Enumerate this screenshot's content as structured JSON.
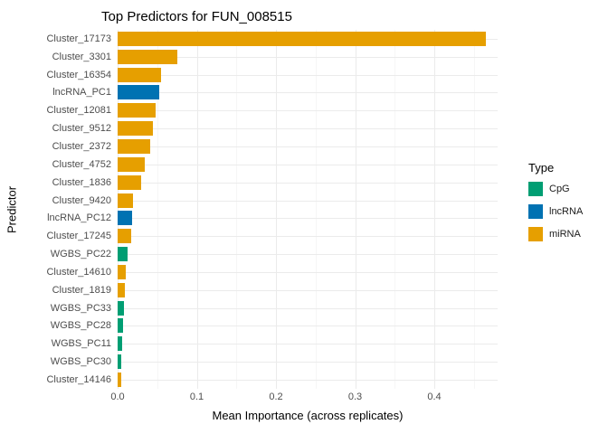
{
  "chart_data": {
    "type": "bar",
    "orientation": "horizontal",
    "title": "Top Predictors for FUN_008515",
    "xlabel": "Mean Importance (across replicates)",
    "ylabel": "Predictor",
    "xlim": [
      0,
      0.48
    ],
    "x_ticks": [
      0.0,
      0.1,
      0.2,
      0.3,
      0.4
    ],
    "x_minor_ticks": [
      0.05,
      0.15,
      0.25,
      0.35,
      0.45
    ],
    "grid": true,
    "background": "#ffffff",
    "legend": {
      "title": "Type",
      "position": "right",
      "entries": [
        {
          "label": "CpG",
          "color": "#009E73"
        },
        {
          "label": "lncRNA",
          "color": "#0072B2"
        },
        {
          "label": "miRNA",
          "color": "#E69F00"
        }
      ]
    },
    "type_colors": {
      "CpG": "#009E73",
      "lncRNA": "#0072B2",
      "miRNA": "#E69F00"
    },
    "bars": [
      {
        "label": "Cluster_17173",
        "type": "miRNA",
        "value": 0.465
      },
      {
        "label": "Cluster_3301",
        "type": "miRNA",
        "value": 0.075
      },
      {
        "label": "Cluster_16354",
        "type": "miRNA",
        "value": 0.055
      },
      {
        "label": "lncRNA_PC1",
        "type": "lncRNA",
        "value": 0.052
      },
      {
        "label": "Cluster_12081",
        "type": "miRNA",
        "value": 0.048
      },
      {
        "label": "Cluster_9512",
        "type": "miRNA",
        "value": 0.044
      },
      {
        "label": "Cluster_2372",
        "type": "miRNA",
        "value": 0.041
      },
      {
        "label": "Cluster_4752",
        "type": "miRNA",
        "value": 0.034
      },
      {
        "label": "Cluster_1836",
        "type": "miRNA",
        "value": 0.03
      },
      {
        "label": "Cluster_9420",
        "type": "miRNA",
        "value": 0.02
      },
      {
        "label": "lncRNA_PC12",
        "type": "lncRNA",
        "value": 0.018
      },
      {
        "label": "Cluster_17245",
        "type": "miRNA",
        "value": 0.017
      },
      {
        "label": "WGBS_PC22",
        "type": "CpG",
        "value": 0.013
      },
      {
        "label": "Cluster_14610",
        "type": "miRNA",
        "value": 0.01
      },
      {
        "label": "Cluster_1819",
        "type": "miRNA",
        "value": 0.009
      },
      {
        "label": "WGBS_PC33",
        "type": "CpG",
        "value": 0.008
      },
      {
        "label": "WGBS_PC28",
        "type": "CpG",
        "value": 0.007
      },
      {
        "label": "WGBS_PC11",
        "type": "CpG",
        "value": 0.006
      },
      {
        "label": "WGBS_PC30",
        "type": "CpG",
        "value": 0.005
      },
      {
        "label": "Cluster_14146",
        "type": "miRNA",
        "value": 0.004
      }
    ]
  }
}
